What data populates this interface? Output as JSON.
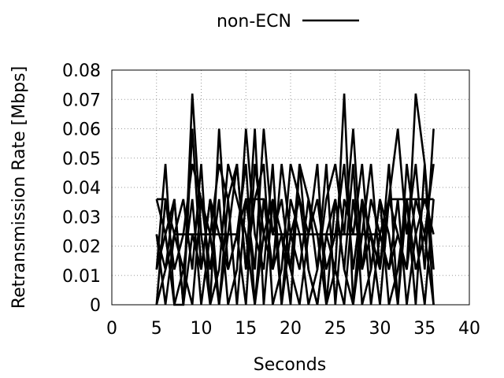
{
  "chart_data": {
    "type": "line",
    "title": "",
    "xlabel": "Seconds",
    "ylabel": "Retransmission Rate [Mbps]",
    "xlim": [
      0,
      40
    ],
    "ylim": [
      0,
      0.08
    ],
    "xticks": [
      "0",
      "5",
      "10",
      "15",
      "20",
      "25",
      "30",
      "35",
      "40"
    ],
    "yticks": [
      "0",
      "0.01",
      "0.02",
      "0.03",
      "0.04",
      "0.05",
      "0.06",
      "0.07",
      "0.08"
    ],
    "xtick_values": [
      0,
      5,
      10,
      15,
      20,
      25,
      30,
      35,
      40
    ],
    "ytick_values": [
      0,
      0.01,
      0.02,
      0.03,
      0.04,
      0.05,
      0.06,
      0.07,
      0.08
    ],
    "grid": true,
    "legend": {
      "position": "top-center",
      "entries": [
        {
          "label": "non-ECN",
          "color": "#000000"
        }
      ]
    },
    "line_color": "#000000",
    "x": [
      5,
      6,
      7,
      8,
      9,
      10,
      11,
      12,
      13,
      14,
      15,
      16,
      17,
      18,
      19,
      20,
      21,
      22,
      23,
      24,
      25,
      26,
      27,
      28,
      29,
      30,
      31,
      32,
      33,
      34,
      35,
      36
    ],
    "series": [
      {
        "values": [
          0.036,
          0.036,
          0.024,
          0.024,
          0.024,
          0.024,
          0.024,
          0.024,
          0.024,
          0.024,
          0.036,
          0.036,
          0.036,
          0.024,
          0.024,
          0.024,
          0.024,
          0.024,
          0.024,
          0.024,
          0.024,
          0.024,
          0.024,
          0.024,
          0.024,
          0.024,
          0.036,
          0.036,
          0.036,
          0.036,
          0.036,
          0.036
        ]
      },
      {
        "values": [
          0.012,
          0.048,
          0.0,
          0.0,
          0.072,
          0.024,
          0.0,
          0.06,
          0.012,
          0.024,
          0.048,
          0.0,
          0.036,
          0.012,
          0.024,
          0.012,
          0.048,
          0.012,
          0.0,
          0.024,
          0.012,
          0.072,
          0.0,
          0.036,
          0.0,
          0.024,
          0.012,
          0.024,
          0.012,
          0.072,
          0.048,
          0.0
        ]
      },
      {
        "values": [
          0.024,
          0.012,
          0.036,
          0.0,
          0.06,
          0.012,
          0.036,
          0.0,
          0.024,
          0.048,
          0.012,
          0.06,
          0.0,
          0.036,
          0.024,
          0.0,
          0.048,
          0.036,
          0.012,
          0.036,
          0.048,
          0.024,
          0.06,
          0.012,
          0.024,
          0.0,
          0.036,
          0.06,
          0.024,
          0.048,
          0.012,
          0.06
        ]
      },
      {
        "values": [
          0.0,
          0.036,
          0.012,
          0.024,
          0.048,
          0.036,
          0.012,
          0.036,
          0.0,
          0.012,
          0.06,
          0.024,
          0.012,
          0.048,
          0.0,
          0.024,
          0.036,
          0.024,
          0.048,
          0.0,
          0.036,
          0.012,
          0.048,
          0.0,
          0.012,
          0.036,
          0.024,
          0.0,
          0.048,
          0.024,
          0.036,
          0.024
        ]
      },
      {
        "values": [
          0.036,
          0.024,
          0.0,
          0.012,
          0.036,
          0.0,
          0.024,
          0.048,
          0.036,
          0.0,
          0.036,
          0.012,
          0.06,
          0.024,
          0.036,
          0.012,
          0.0,
          0.024,
          0.036,
          0.012,
          0.024,
          0.048,
          0.012,
          0.036,
          0.024,
          0.012,
          0.048,
          0.0,
          0.036,
          0.012,
          0.024,
          0.048
        ]
      },
      {
        "values": [
          0.024,
          0.0,
          0.024,
          0.036,
          0.012,
          0.048,
          0.0,
          0.012,
          0.048,
          0.036,
          0.024,
          0.0,
          0.024,
          0.036,
          0.0,
          0.036,
          0.024,
          0.0,
          0.012,
          0.048,
          0.0,
          0.036,
          0.024,
          0.048,
          0.012,
          0.036,
          0.0,
          0.012,
          0.036,
          0.0,
          0.048,
          0.012
        ]
      },
      {
        "values": [
          0.012,
          0.024,
          0.036,
          0.0,
          0.024,
          0.012,
          0.036,
          0.024,
          0.012,
          0.024,
          0.0,
          0.048,
          0.024,
          0.012,
          0.048,
          0.024,
          0.012,
          0.036,
          0.024,
          0.0,
          0.012,
          0.0,
          0.036,
          0.012,
          0.036,
          0.024,
          0.012,
          0.036,
          0.0,
          0.024,
          0.0,
          0.036
        ]
      },
      {
        "values": [
          0.0,
          0.012,
          0.024,
          0.012,
          0.0,
          0.036,
          0.024,
          0.0,
          0.036,
          0.048,
          0.012,
          0.036,
          0.048,
          0.0,
          0.012,
          0.048,
          0.036,
          0.012,
          0.0,
          0.024,
          0.036,
          0.012,
          0.0,
          0.024,
          0.048,
          0.012,
          0.036,
          0.024,
          0.012,
          0.036,
          0.024,
          0.0
        ]
      }
    ]
  }
}
